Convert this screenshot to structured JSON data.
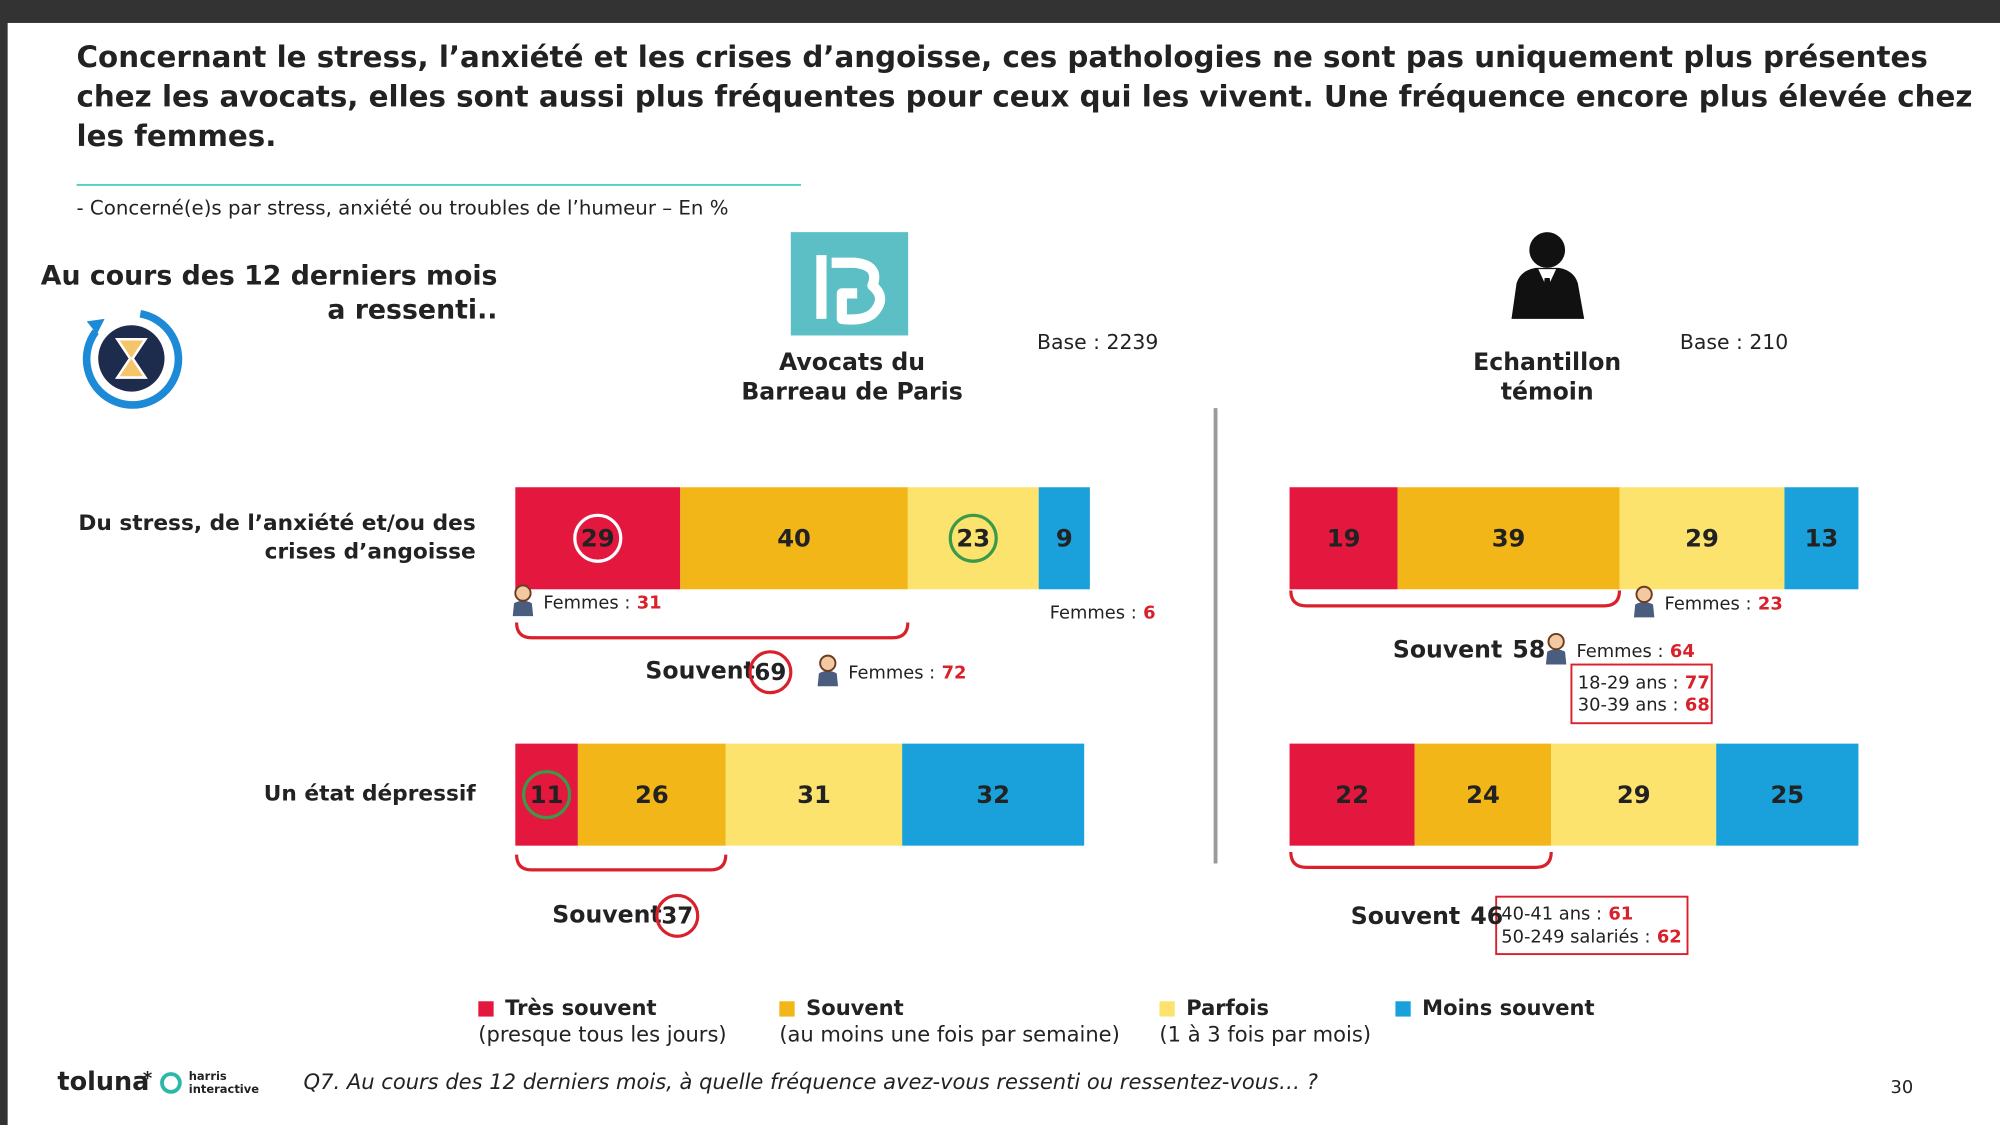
{
  "title": [
    "Concernant le stress, l’anxiété et les crises d’angoisse, ces pathologies ne sont pas uniquement plus présentes",
    "chez les avocats, elles sont aussi plus fréquentes pour ceux qui les vivent. Une fréquence encore plus élevée chez",
    "les femmes."
  ],
  "subtitle": "- Concerné(e)s par stress, anxiété ou troubles de l’humeur – En %",
  "period": [
    "Au cours des 12 derniers mois",
    "a ressenti.."
  ],
  "chart_data": {
    "type": "stacked-bar",
    "categories": [
      [
        "Du stress, de l’anxiété et/ou des",
        "crises d’angoisse"
      ],
      [
        "Un état dépressif"
      ]
    ],
    "legend": [
      {
        "name": "Très souvent",
        "note": "(presque tous les jours)",
        "color": "#e4173f"
      },
      {
        "name": "Souvent",
        "note": "(au moins une fois par semaine)",
        "color": "#f2b619"
      },
      {
        "name": "Parfois",
        "note": "(1 à 3 fois par mois)",
        "color": "#fce36e"
      },
      {
        "name": "Moins souvent",
        "color": "#1aa1db"
      }
    ],
    "panels": [
      {
        "title": [
          "Avocats du",
          "Barreau de Paris"
        ],
        "base": "Base : 2239",
        "circled": true,
        "series": [
          {
            "values": [
              29,
              11
            ],
            "circle": [
              "#ffffff",
              "#3a9a4a"
            ]
          },
          {
            "values": [
              40,
              26
            ]
          },
          {
            "values": [
              23,
              31
            ],
            "circle": [
              "#3a9a4a",
              null
            ]
          },
          {
            "values": [
              9,
              32
            ]
          }
        ],
        "totals": [
          {
            "label": "Souvent",
            "value": 69
          },
          {
            "label": "Souvent",
            "value": 37
          }
        ],
        "notes": [
          {
            "label": "Femmes :",
            "value": 31
          },
          {
            "label": "Femmes :",
            "value": 6
          },
          {
            "label": "Femmes :",
            "value": 72
          }
        ]
      },
      {
        "title": [
          "Echantillon",
          "témoin"
        ],
        "base": "Base : 210",
        "circled": false,
        "series": [
          {
            "values": [
              19,
              22
            ]
          },
          {
            "values": [
              39,
              24
            ]
          },
          {
            "values": [
              29,
              29
            ]
          },
          {
            "values": [
              13,
              25
            ]
          }
        ],
        "totals": [
          {
            "label": "Souvent",
            "value": 58
          },
          {
            "label": "Souvent",
            "value": 46
          }
        ],
        "notes": [
          {
            "label": "Femmes :",
            "value": 23
          },
          {
            "label": "Femmes :",
            "value": 64
          },
          {
            "label": "18-29 ans :",
            "value": 77
          },
          {
            "label": "30-39 ans :",
            "value": 68
          },
          {
            "label": "40-41 ans :",
            "value": 61
          },
          {
            "label": "50-249 salariés :",
            "value": 62
          }
        ]
      }
    ]
  },
  "question": "Q7. Au cours des 12 derniers mois, à quelle fréquence avez-vous ressenti ou ressentez-vous… ?",
  "footer": {
    "logo": "toluna",
    "partner": [
      "harris",
      "interactive"
    ],
    "page": "30"
  }
}
